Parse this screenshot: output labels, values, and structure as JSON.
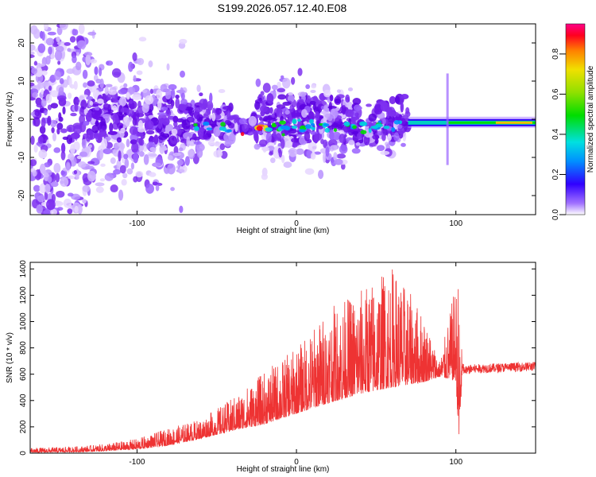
{
  "title": "S199.2026.057.12.40.E08",
  "colors": {
    "trace": "#ee3333",
    "spectro_base": "#8a2be2",
    "frame": "#000000"
  },
  "chart_data": [
    {
      "type": "heatmap",
      "name": "spectrogram",
      "xlabel": "Height of straight line (km)",
      "ylabel": "Frequency (Hz)",
      "xlim": [
        -167,
        150
      ],
      "ylim": [
        -25,
        25
      ],
      "xticks": [
        -100,
        0,
        100
      ],
      "yticks": [
        20,
        10,
        0,
        -10,
        -20
      ],
      "colorbar": {
        "label": "Normalized spectral amplitude",
        "range": [
          0,
          0.95
        ],
        "ticks": [
          0.0,
          0.2,
          0.4,
          0.6,
          0.8
        ],
        "tick_labels": [
          "0.0",
          "0.2",
          "0.4",
          "0.6",
          "0.8"
        ]
      },
      "features": [
        {
          "desc": "narrow band",
          "x_range": [
            70,
            150
          ],
          "freq": -1,
          "amplitude": 0.6
        },
        {
          "desc": "bright core",
          "x_range": [
            -40,
            -20
          ],
          "freq": -4,
          "amplitude": 0.9
        }
      ]
    },
    {
      "type": "line",
      "name": "snr",
      "xlabel": "Height of straight line (km)",
      "ylabel": "SNR (10 * v/v)",
      "xlim": [
        -167,
        150
      ],
      "ylim": [
        0,
        1450
      ],
      "xticks": [
        -100,
        0,
        100
      ],
      "yticks": [
        0,
        200,
        400,
        600,
        800,
        1000,
        1200,
        1400
      ],
      "envelope": {
        "x": [
          -167,
          -140,
          -120,
          -100,
          -80,
          -60,
          -40,
          -20,
          0,
          20,
          40,
          60,
          80,
          90,
          100,
          102,
          104,
          110,
          130,
          150
        ],
        "baseline": [
          5,
          8,
          15,
          30,
          60,
          110,
          170,
          220,
          300,
          380,
          450,
          500,
          540,
          580,
          550,
          50,
          620,
          640,
          650,
          660
        ],
        "peak": [
          40,
          50,
          70,
          110,
          190,
          260,
          420,
          620,
          800,
          1100,
          1250,
          1430,
          1050,
          700,
          1300,
          1340,
          700,
          690,
          700,
          700
        ]
      }
    }
  ]
}
